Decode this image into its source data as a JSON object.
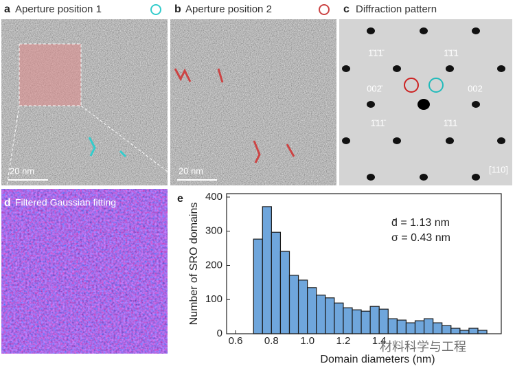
{
  "panels": {
    "a": {
      "label": "a",
      "title": "Aperture position 1",
      "scale_bar": "20 nm"
    },
    "b": {
      "label": "b",
      "title": "Aperture position 2",
      "scale_bar": "20 nm"
    },
    "c": {
      "label": "c",
      "title": "Diffraction pattern",
      "spot_labels": [
        "1̄1̄1̄",
        "1̄1̄1",
        "002̄",
        "002",
        "1̄11̄",
        "1̄11"
      ],
      "zone_axis": "[110]"
    },
    "d": {
      "label": "d",
      "title": "Filtered Gaussian fitting"
    }
  },
  "chart_data": {
    "type": "histogram",
    "label": "e",
    "x_label": "Domain diameters (nm)",
    "y_label": "Number of SRO domains",
    "annotations": [
      "d̄ = 1.13 nm",
      "σ = 0.43 nm"
    ],
    "bins": [
      0.7,
      0.75,
      0.8,
      0.85,
      0.9,
      0.95,
      1.0,
      1.05,
      1.1,
      1.15,
      1.2,
      1.25,
      1.3,
      1.35,
      1.4,
      1.45,
      1.5,
      1.55,
      1.6,
      1.65,
      1.7,
      1.75,
      1.8,
      1.85,
      1.9,
      1.95,
      2.0
    ],
    "values": [
      277,
      372,
      297,
      241,
      171,
      157,
      135,
      113,
      105,
      90,
      76,
      70,
      66,
      80,
      72,
      44,
      40,
      32,
      38,
      44,
      32,
      24,
      16,
      10,
      16,
      10
    ],
    "color": "#6fa6dc",
    "xlim": [
      0.55,
      2.08
    ],
    "ylim": [
      0,
      410
    ],
    "xticks": [
      0.6,
      0.8,
      {
        "value": 1.0,
        "label": "1.0"
      },
      1.2,
      1.4
    ],
    "yticks": [
      0,
      100,
      200,
      300,
      400
    ]
  },
  "watermark": "材料科学与工程"
}
